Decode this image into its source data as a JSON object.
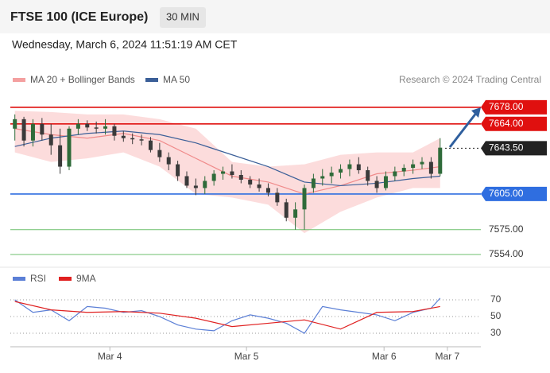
{
  "header": {
    "title": "FTSE 100 (ICE Europe)",
    "timeframe": "30 MIN",
    "date": "Wednesday, March 6, 2024 11:51:19 AM CET"
  },
  "chart_data": [
    {
      "type": "candlestick",
      "source": "Research © 2024 Trading Central",
      "x": [
        0,
        1,
        2,
        3,
        4,
        5,
        6,
        7,
        8,
        9,
        10,
        11,
        12,
        13,
        14,
        15,
        16,
        17,
        18,
        19,
        20,
        21,
        22,
        23,
        24,
        25,
        26,
        27,
        28,
        29,
        30,
        31,
        32,
        33,
        34,
        35,
        36,
        37,
        38,
        39,
        40,
        41,
        42,
        43,
        44,
        45,
        46,
        47
      ],
      "open": [
        7660,
        7668,
        7650,
        7664,
        7655,
        7646,
        7628,
        7660,
        7664,
        7661,
        7660,
        7662,
        7654,
        7652,
        7651,
        7650,
        7642,
        7636,
        7630,
        7620,
        7612,
        7610,
        7616,
        7622,
        7624,
        7621,
        7617,
        7613,
        7610,
        7606,
        7598,
        7585,
        7592,
        7610,
        7618,
        7620,
        7623,
        7626,
        7630,
        7625,
        7616,
        7610,
        7620,
        7624,
        7627,
        7630,
        7632,
        7622
      ],
      "high": [
        7672,
        7670,
        7668,
        7669,
        7664,
        7660,
        7662,
        7668,
        7667,
        7666,
        7668,
        7664,
        7658,
        7656,
        7655,
        7653,
        7648,
        7640,
        7633,
        7624,
        7618,
        7620,
        7625,
        7628,
        7630,
        7625,
        7620,
        7618,
        7614,
        7610,
        7601,
        7598,
        7613,
        7622,
        7626,
        7628,
        7630,
        7634,
        7636,
        7628,
        7620,
        7624,
        7628,
        7630,
        7634,
        7636,
        7636,
        7652
      ],
      "low": [
        7650,
        7645,
        7645,
        7650,
        7638,
        7622,
        7625,
        7655,
        7658,
        7656,
        7655,
        7650,
        7649,
        7647,
        7646,
        7640,
        7632,
        7625,
        7616,
        7610,
        7604,
        7605,
        7612,
        7617,
        7618,
        7614,
        7610,
        7607,
        7603,
        7595,
        7582,
        7575,
        7575,
        7606,
        7612,
        7614,
        7618,
        7620,
        7622,
        7612,
        7606,
        7608,
        7616,
        7620,
        7622,
        7626,
        7618,
        7620
      ],
      "close": [
        7668,
        7650,
        7664,
        7655,
        7646,
        7628,
        7660,
        7664,
        7661,
        7660,
        7662,
        7654,
        7652,
        7651,
        7650,
        7642,
        7636,
        7630,
        7620,
        7612,
        7610,
        7616,
        7622,
        7624,
        7621,
        7617,
        7613,
        7610,
        7606,
        7598,
        7585,
        7592,
        7610,
        7618,
        7620,
        7623,
        7626,
        7630,
        7625,
        7616,
        7610,
        7620,
        7624,
        7627,
        7630,
        7632,
        7622,
        7644
      ],
      "up_color": "#2f6b3a",
      "down_color": "#3a3a3a",
      "series": [
        {
          "name": "MA 20 + Bollinger Bands",
          "color": "#f08a8a",
          "band_color": "#fbd3d3",
          "x": [
            0,
            4,
            8,
            12,
            16,
            20,
            24,
            28,
            32,
            36,
            40,
            44,
            47
          ],
          "values": [
            7660,
            7655,
            7652,
            7656,
            7650,
            7635,
            7620,
            7615,
            7605,
            7612,
            7622,
            7625,
            7628
          ],
          "upper": [
            7675,
            7674,
            7672,
            7672,
            7668,
            7660,
            7632,
            7628,
            7630,
            7638,
            7640,
            7640,
            7652
          ],
          "lower": [
            7640,
            7632,
            7635,
            7640,
            7628,
            7605,
            7602,
            7596,
            7572,
            7590,
            7602,
            7610,
            7610
          ]
        },
        {
          "name": "MA 50",
          "color": "#3b5f98",
          "x": [
            0,
            4,
            8,
            12,
            16,
            20,
            24,
            28,
            32,
            36,
            40,
            44,
            47
          ],
          "values": [
            7645,
            7652,
            7656,
            7658,
            7655,
            7648,
            7638,
            7628,
            7615,
            7612,
            7614,
            7618,
            7620
          ]
        }
      ],
      "levels": [
        {
          "value": 7678,
          "label": "7678.00",
          "color": "#e0100f",
          "box": true,
          "dotted": false
        },
        {
          "value": 7664,
          "label": "7664.00",
          "color": "#e0100f",
          "box": true,
          "dotted": false
        },
        {
          "value": 7643.5,
          "label": "7643.50",
          "color": "#222222",
          "box": true,
          "dotted": true
        },
        {
          "value": 7605,
          "label": "7605.00",
          "color": "#2f6ee0",
          "box": true,
          "dotted": false
        },
        {
          "value": 7575,
          "label": "7575.00",
          "color": "#6cbf6c",
          "box": false,
          "dotted": false
        },
        {
          "value": 7554,
          "label": "7554.00",
          "color": "#6cbf6c",
          "box": false,
          "dotted": false
        }
      ],
      "xlim": [
        -0.5,
        51.5
      ],
      "ylim": [
        7547,
        7692
      ]
    },
    {
      "type": "line",
      "series": [
        {
          "name": "RSI",
          "color": "#5b7fd6",
          "x": [
            0,
            2,
            4,
            6,
            8,
            10,
            12,
            14,
            16,
            18,
            20,
            22,
            24,
            26,
            28,
            30,
            32,
            34,
            36,
            38,
            40,
            42,
            44,
            46,
            47
          ],
          "values": [
            70,
            55,
            58,
            45,
            62,
            60,
            55,
            57,
            50,
            40,
            35,
            33,
            45,
            52,
            48,
            42,
            30,
            62,
            58,
            55,
            52,
            45,
            55,
            60,
            72
          ]
        },
        {
          "name": "9MA",
          "color": "#e02020",
          "x": [
            0,
            4,
            8,
            12,
            16,
            20,
            24,
            28,
            32,
            36,
            40,
            44,
            47
          ],
          "values": [
            68,
            58,
            55,
            56,
            54,
            48,
            38,
            42,
            46,
            35,
            55,
            56,
            62
          ]
        }
      ],
      "xlim": [
        -0.5,
        51.5
      ],
      "ylim": [
        17,
        84
      ],
      "yticks": [
        30,
        50,
        70
      ],
      "xticks": [
        {
          "value": 10.5,
          "label": "Mar 4"
        },
        {
          "value": 25.6,
          "label": "Mar 5"
        },
        {
          "value": 40.8,
          "label": "Mar 6"
        },
        {
          "value": 47.8,
          "label": "Mar 7"
        }
      ]
    }
  ]
}
